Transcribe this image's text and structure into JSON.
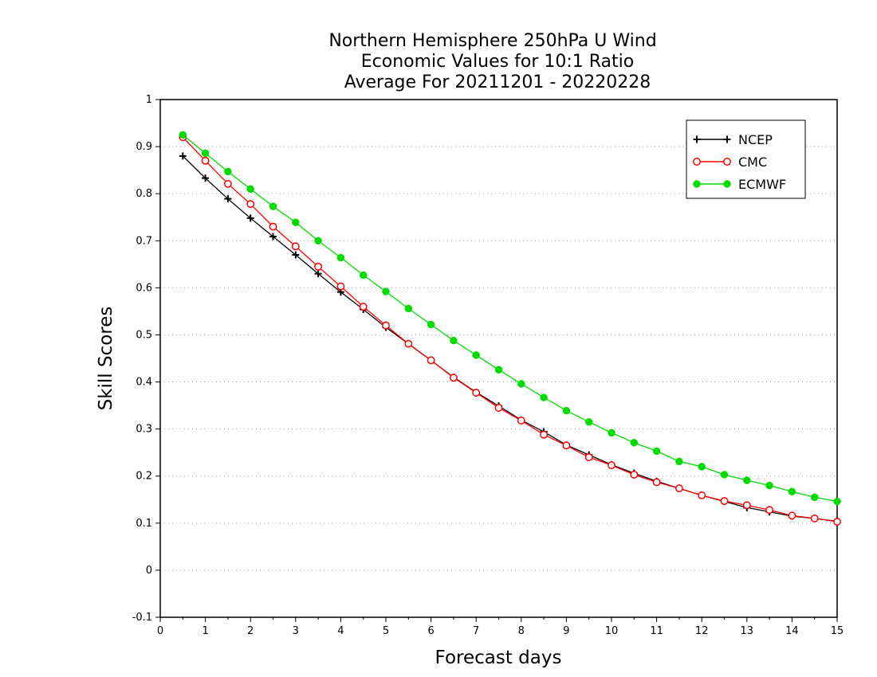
{
  "chart_data": {
    "type": "line",
    "title_lines": [
      "Northern Hemisphere 250hPa U Wind",
      "Economic Values for 10:1 Ratio",
      "Average For 20211201 - 20220228"
    ],
    "xlabel": "Forecast days",
    "ylabel": "Skill Scores",
    "xlim": [
      0,
      15
    ],
    "ylim": [
      -0.1,
      1
    ],
    "xticks": [
      "0",
      "1",
      "2",
      "3",
      "4",
      "5",
      "6",
      "7",
      "8",
      "9",
      "10",
      "11",
      "12",
      "13",
      "14",
      "15"
    ],
    "yticks": [
      "-0.1",
      "0",
      "0.1",
      "0.2",
      "0.3",
      "0.4",
      "0.5",
      "0.6",
      "0.7",
      "0.8",
      "0.9",
      "1"
    ],
    "grid": "horizontal dotted",
    "legend_position": "top-right",
    "x": [
      0.5,
      1,
      1.5,
      2,
      2.5,
      3,
      3.5,
      4,
      4.5,
      5,
      5.5,
      6,
      6.5,
      7,
      7.5,
      8,
      8.5,
      9,
      9.5,
      10,
      10.5,
      11,
      11.5,
      12,
      12.5,
      13,
      13.5,
      14,
      14.5,
      15
    ],
    "series": [
      {
        "name": "NCEP",
        "color": "#000000",
        "marker": "plus",
        "values": [
          0.88,
          0.833,
          0.789,
          0.748,
          0.709,
          0.67,
          0.63,
          0.591,
          0.554,
          0.516,
          0.481,
          0.446,
          0.41,
          0.378,
          0.349,
          0.319,
          0.294,
          0.266,
          0.245,
          0.224,
          0.206,
          0.189,
          0.174,
          0.159,
          0.146,
          0.133,
          0.124,
          0.115,
          0.11,
          0.104
        ]
      },
      {
        "name": "CMC",
        "color": "#ff0000",
        "marker": "open-circle",
        "values": [
          0.92,
          0.87,
          0.821,
          0.778,
          0.73,
          0.688,
          0.645,
          0.603,
          0.56,
          0.52,
          0.481,
          0.446,
          0.409,
          0.377,
          0.345,
          0.318,
          0.288,
          0.265,
          0.24,
          0.223,
          0.203,
          0.187,
          0.174,
          0.159,
          0.147,
          0.138,
          0.128,
          0.116,
          0.11,
          0.103
        ]
      },
      {
        "name": "ECMWF",
        "color": "#00dc00",
        "marker": "filled-circle",
        "values": [
          0.925,
          0.886,
          0.847,
          0.81,
          0.773,
          0.739,
          0.7,
          0.664,
          0.627,
          0.592,
          0.556,
          0.522,
          0.488,
          0.457,
          0.426,
          0.396,
          0.367,
          0.339,
          0.315,
          0.292,
          0.271,
          0.253,
          0.231,
          0.22,
          0.203,
          0.191,
          0.18,
          0.167,
          0.155,
          0.146
        ]
      }
    ]
  }
}
